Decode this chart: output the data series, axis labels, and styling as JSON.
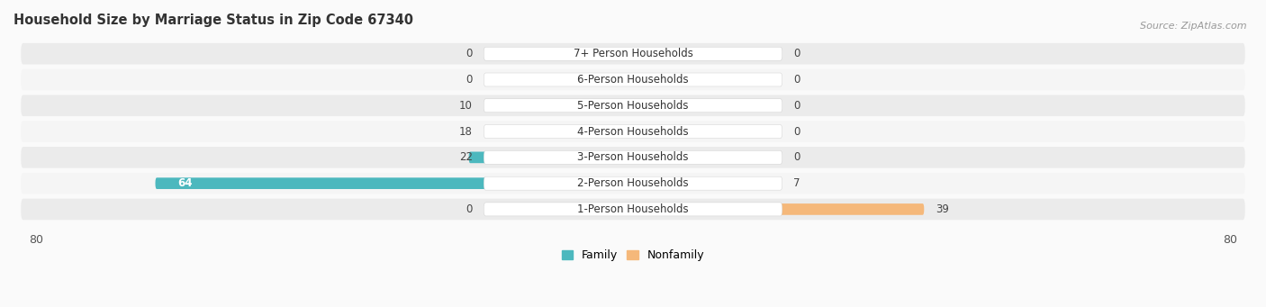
{
  "title": "Household Size by Marriage Status in Zip Code 67340",
  "source": "Source: ZipAtlas.com",
  "categories": [
    "7+ Person Households",
    "6-Person Households",
    "5-Person Households",
    "4-Person Households",
    "3-Person Households",
    "2-Person Households",
    "1-Person Households"
  ],
  "family": [
    0,
    0,
    10,
    18,
    22,
    64,
    0
  ],
  "nonfamily": [
    0,
    0,
    0,
    0,
    0,
    7,
    39
  ],
  "family_color": "#4CB8BE",
  "nonfamily_color": "#F5B87A",
  "row_bg_color": "#EBEBEB",
  "row_bg_color_alt": "#F5F5F5",
  "label_bg_color": "#FFFFFF",
  "max_val": 80,
  "title_fontsize": 10.5,
  "source_fontsize": 8,
  "cat_fontsize": 8.5,
  "val_fontsize": 8.5,
  "legend_fontsize": 9,
  "bg_color": "#FAFAFA"
}
